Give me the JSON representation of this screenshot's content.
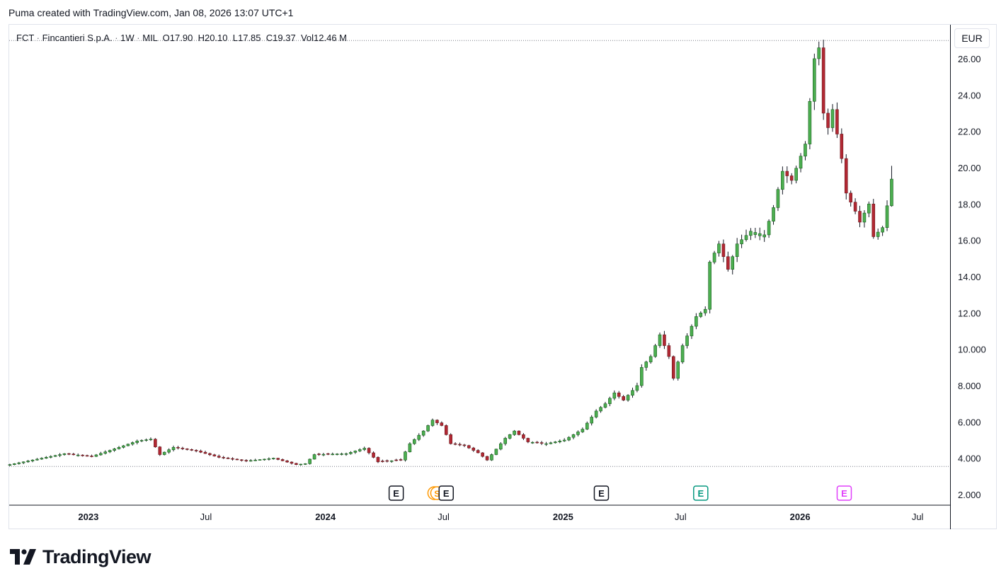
{
  "header": {
    "text": "Puma created with TradingView.com, Jan 08, 2026 13:07 UTC+1"
  },
  "legend": {
    "symbol": "FCT",
    "name": "Fincantieri S.p.A.",
    "interval": "1W",
    "exchange": "MIL",
    "open_label": "O",
    "open": "17.90",
    "high_label": "H",
    "high": "20.10",
    "low_label": "L",
    "low": "17.85",
    "close_label": "C",
    "close": "19.37",
    "vol_label": "Vol",
    "vol": "12.46 M"
  },
  "currency": "EUR",
  "logo": {
    "text": "TradingView"
  },
  "colors": {
    "up": "#26a69a",
    "up_fill": "#4caf50",
    "down": "#ef5350",
    "down_fill": "#b22833",
    "earnings": "#131722",
    "earnings_recent": "#089981",
    "dividend": "#ff9800",
    "future": "#e040fb"
  },
  "chart_data": {
    "type": "candlestick",
    "title": "FCT · Fincantieri S.p.A. · 1W · MIL",
    "ylabel": "EUR",
    "ylim": [
      2.0,
      27.4
    ],
    "xlim": [
      "2022-09-01",
      "2026-08-20"
    ],
    "y_ticks": [
      "2.000",
      "4.000",
      "6.000",
      "8.000",
      "10.000",
      "12.00",
      "14.00",
      "16.00",
      "18.00",
      "20.00",
      "22.00",
      "24.00",
      "26.00"
    ],
    "x_ticks": [
      {
        "label": "2023",
        "date": "2023-01-01",
        "bold": true
      },
      {
        "label": "Jul",
        "date": "2023-07-01",
        "bold": false
      },
      {
        "label": "2024",
        "date": "2024-01-01",
        "bold": true
      },
      {
        "label": "Jul",
        "date": "2024-07-01",
        "bold": false
      },
      {
        "label": "2025",
        "date": "2025-01-01",
        "bold": true
      },
      {
        "label": "Jul",
        "date": "2025-07-01",
        "bold": false
      },
      {
        "label": "2026",
        "date": "2026-01-01",
        "bold": true
      },
      {
        "label": "Jul",
        "date": "2026-07-01",
        "bold": false
      }
    ],
    "waypoints": [
      [
        "2022-09-02",
        3.65
      ],
      [
        "2022-10-14",
        3.95
      ],
      [
        "2022-11-25",
        4.25
      ],
      [
        "2023-01-06",
        4.1
      ],
      [
        "2023-02-17",
        4.6
      ],
      [
        "2023-03-17",
        4.95
      ],
      [
        "2023-04-07",
        5.05
      ],
      [
        "2023-04-21",
        4.2
      ],
      [
        "2023-05-12",
        4.6
      ],
      [
        "2023-06-16",
        4.4
      ],
      [
        "2023-07-21",
        4.05
      ],
      [
        "2023-09-01",
        3.85
      ],
      [
        "2023-10-13",
        4.0
      ],
      [
        "2023-11-17",
        3.65
      ],
      [
        "2023-12-01",
        3.7
      ],
      [
        "2023-12-15",
        4.2
      ],
      [
        "2024-02-02",
        4.25
      ],
      [
        "2024-03-01",
        4.55
      ],
      [
        "2024-03-22",
        3.8
      ],
      [
        "2024-04-26",
        3.9
      ],
      [
        "2024-05-10",
        4.8
      ],
      [
        "2024-05-31",
        5.5
      ],
      [
        "2024-06-14",
        6.1
      ],
      [
        "2024-06-28",
        5.8
      ],
      [
        "2024-07-12",
        4.8
      ],
      [
        "2024-08-02",
        4.7
      ],
      [
        "2024-08-23",
        4.3
      ],
      [
        "2024-09-06",
        3.9
      ],
      [
        "2024-09-20",
        4.5
      ],
      [
        "2024-10-04",
        5.1
      ],
      [
        "2024-10-18",
        5.5
      ],
      [
        "2024-11-08",
        4.9
      ],
      [
        "2024-12-06",
        4.8
      ],
      [
        "2025-01-03",
        5.0
      ],
      [
        "2025-01-31",
        5.6
      ],
      [
        "2025-02-21",
        6.6
      ],
      [
        "2025-03-07",
        7.0
      ],
      [
        "2025-03-21",
        7.6
      ],
      [
        "2025-04-04",
        7.2
      ],
      [
        "2025-04-25",
        8.0
      ],
      [
        "2025-05-02",
        9.0
      ],
      [
        "2025-05-16",
        9.6
      ],
      [
        "2025-05-30",
        10.8
      ],
      [
        "2025-06-13",
        9.6
      ],
      [
        "2025-06-20",
        8.4
      ],
      [
        "2025-07-04",
        10.2
      ],
      [
        "2025-07-25",
        11.8
      ],
      [
        "2025-08-08",
        12.2
      ],
      [
        "2025-08-15",
        14.8
      ],
      [
        "2025-08-29",
        15.8
      ],
      [
        "2025-09-12",
        14.4
      ],
      [
        "2025-09-26",
        15.8
      ],
      [
        "2025-10-17",
        16.5
      ],
      [
        "2025-11-07",
        16.3
      ],
      [
        "2025-11-21",
        17.8
      ],
      [
        "2025-12-05",
        19.8
      ],
      [
        "2025-12-19",
        19.3
      ],
      [
        "2026-01-09",
        21.3
      ],
      [
        "2026-01-23",
        26.0
      ],
      [
        "2026-01-30",
        26.6
      ],
      [
        "2026-02-06",
        23.0
      ],
      [
        "2026-02-13",
        22.2
      ],
      [
        "2026-02-20",
        23.2
      ],
      [
        "2026-03-06",
        20.5
      ],
      [
        "2026-03-13",
        18.6
      ],
      [
        "2026-03-27",
        17.6
      ],
      [
        "2026-04-03",
        17.0
      ],
      [
        "2026-04-17",
        18.0
      ],
      [
        "2026-04-24",
        16.2
      ],
      [
        "2026-05-08",
        16.7
      ],
      [
        "2026-05-15",
        17.9
      ],
      [
        "2026-05-22",
        19.37
      ]
    ],
    "last_candle": {
      "open": 17.9,
      "high": 20.1,
      "low": 17.85,
      "close": 19.37
    },
    "events": [
      {
        "type": "earnings",
        "date": "2024-04-19",
        "label": "E"
      },
      {
        "type": "dividend",
        "date": "2024-06-21",
        "label": "S"
      },
      {
        "type": "earnings",
        "date": "2024-07-05",
        "label": "E"
      },
      {
        "type": "earnings",
        "date": "2025-03-01",
        "label": "E"
      },
      {
        "type": "earnings",
        "date": "2025-08-01",
        "label": "E"
      },
      {
        "type": "earnings-upcoming",
        "date": "2026-03-10",
        "label": "E"
      }
    ]
  }
}
